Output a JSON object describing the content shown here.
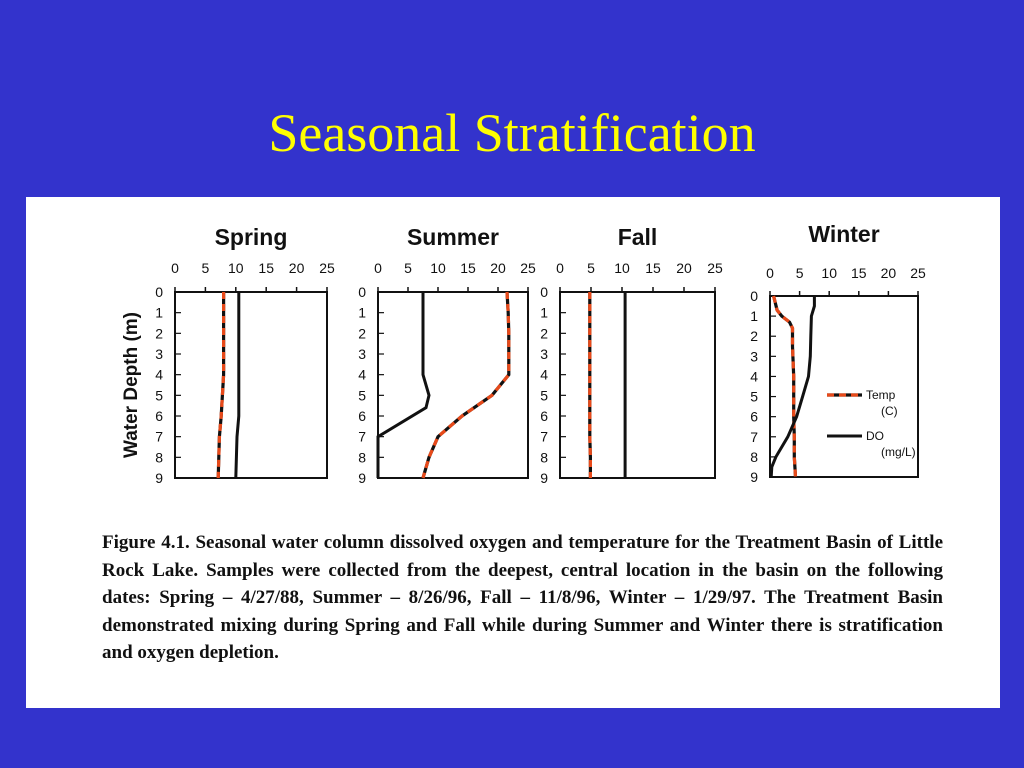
{
  "slide": {
    "title": "Seasonal Stratification"
  },
  "caption": "Figure 4.1.  Seasonal water column dissolved oxygen and temperature for the Treatment Basin of Little Rock Lake.  Samples were collected from the deepest, central location in the basin on the following dates: Spring – 4/27/88, Summer – 8/26/96, Fall – 11/8/96, Winter – 1/29/97.  The Treatment Basin demonstrated mixing during Spring and Fall while during Summer and Winter there is stratification and oxygen depletion.",
  "colors": {
    "background": "#3333cc",
    "title": "#ffff00",
    "temp_dash": "#e84a1a",
    "do_line": "#111111",
    "panel": "#ffffff"
  },
  "chart_data": [
    {
      "type": "line",
      "title": "Spring",
      "xticks": [
        0,
        5,
        10,
        15,
        20,
        25
      ],
      "xlim": [
        0,
        25
      ],
      "ylabel": "Water Depth (m)",
      "yticks": [
        0,
        1,
        2,
        3,
        4,
        5,
        6,
        7,
        8,
        9
      ],
      "ylim": [
        0,
        9
      ],
      "series": [
        {
          "style": "temp-dashed",
          "points": [
            [
              8,
              0
            ],
            [
              8,
              1
            ],
            [
              8,
              2
            ],
            [
              8,
              3
            ],
            [
              8,
              4
            ],
            [
              7.8,
              5
            ],
            [
              7.6,
              6
            ],
            [
              7.3,
              7
            ],
            [
              7.2,
              8
            ],
            [
              7.1,
              9
            ]
          ]
        },
        {
          "style": "do-solid",
          "points": [
            [
              10.5,
              0
            ],
            [
              10.5,
              1
            ],
            [
              10.5,
              2
            ],
            [
              10.5,
              3
            ],
            [
              10.5,
              4
            ],
            [
              10.5,
              5
            ],
            [
              10.5,
              6
            ],
            [
              10.2,
              7
            ],
            [
              10.1,
              8
            ],
            [
              10,
              9
            ]
          ]
        }
      ]
    },
    {
      "type": "line",
      "title": "Summer",
      "xticks": [
        0,
        5,
        10,
        15,
        20,
        25
      ],
      "xlim": [
        0,
        25
      ],
      "yticks": [
        0,
        1,
        2,
        3,
        4,
        5,
        6,
        7,
        8,
        9
      ],
      "ylim": [
        0,
        9
      ],
      "series": [
        {
          "style": "temp-dashed",
          "points": [
            [
              21.5,
              0
            ],
            [
              21.7,
              1
            ],
            [
              21.8,
              2
            ],
            [
              21.8,
              3
            ],
            [
              21.8,
              4
            ],
            [
              19,
              5
            ],
            [
              14,
              6
            ],
            [
              10,
              7
            ],
            [
              8.5,
              8
            ],
            [
              7.5,
              9
            ]
          ]
        },
        {
          "style": "do-solid",
          "points": [
            [
              7.5,
              0
            ],
            [
              7.5,
              1
            ],
            [
              7.5,
              2
            ],
            [
              7.5,
              3
            ],
            [
              7.5,
              4
            ],
            [
              8.5,
              5
            ],
            [
              8,
              5.6
            ],
            [
              0,
              7
            ],
            [
              0,
              8
            ],
            [
              0,
              9
            ]
          ]
        }
      ]
    },
    {
      "type": "line",
      "title": "Fall",
      "xticks": [
        0,
        5,
        10,
        15,
        20,
        25
      ],
      "xlim": [
        0,
        25
      ],
      "yticks": [
        0,
        1,
        2,
        3,
        4,
        5,
        6,
        7,
        8,
        9
      ],
      "ylim": [
        0,
        9
      ],
      "series": [
        {
          "style": "temp-dashed",
          "points": [
            [
              4.8,
              0
            ],
            [
              4.8,
              1
            ],
            [
              4.8,
              2
            ],
            [
              4.8,
              3
            ],
            [
              4.8,
              4
            ],
            [
              4.8,
              5
            ],
            [
              4.8,
              6
            ],
            [
              4.8,
              7
            ],
            [
              4.9,
              8
            ],
            [
              4.9,
              9
            ]
          ]
        },
        {
          "style": "do-solid",
          "points": [
            [
              10.5,
              0
            ],
            [
              10.5,
              9
            ]
          ]
        }
      ]
    },
    {
      "type": "line",
      "title": "Winter",
      "xticks": [
        0,
        5,
        10,
        15,
        20,
        25
      ],
      "xlim": [
        0,
        25
      ],
      "yticks": [
        0,
        1,
        2,
        3,
        4,
        5,
        6,
        7,
        8,
        9
      ],
      "ylim": [
        0,
        9
      ],
      "legend": {
        "placement": "right",
        "entries": [
          "Temp (C)",
          "DO (mg/L)"
        ]
      },
      "series": [
        {
          "style": "temp-dashed",
          "points": [
            [
              0.6,
              0
            ],
            [
              1.2,
              0.7
            ],
            [
              2,
              1
            ],
            [
              3.3,
              1.3
            ],
            [
              3.8,
              1.6
            ],
            [
              3.8,
              2.5
            ],
            [
              4,
              4
            ],
            [
              4,
              6
            ],
            [
              4.1,
              7
            ],
            [
              4.1,
              8
            ],
            [
              4.3,
              9
            ]
          ]
        },
        {
          "style": "do-solid",
          "points": [
            [
              7.5,
              0
            ],
            [
              7.5,
              0.5
            ],
            [
              7,
              1
            ],
            [
              6.9,
              2
            ],
            [
              6.8,
              3
            ],
            [
              6.5,
              4
            ],
            [
              5.5,
              5
            ],
            [
              4.5,
              6
            ],
            [
              3,
              7
            ],
            [
              1,
              8
            ],
            [
              0.3,
              8.5
            ],
            [
              0.2,
              9
            ]
          ]
        }
      ]
    }
  ]
}
